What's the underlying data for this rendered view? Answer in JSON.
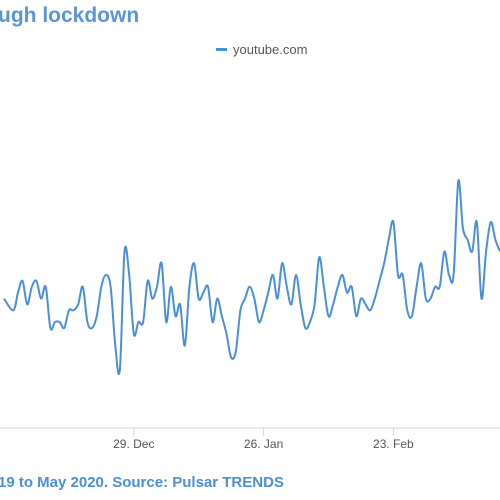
{
  "chart_data": {
    "type": "line",
    "title": "ugh lockdown",
    "source": "19 to May 2020. Source: Pulsar TRENDS",
    "legend_position": "top",
    "grid": false,
    "series": [
      {
        "name": "youtube.com",
        "color": "#4a8fd9",
        "x": [
          0,
          2,
          3,
          4,
          5,
          6,
          7,
          8,
          9,
          10,
          11,
          12,
          13,
          14,
          15,
          16,
          17,
          18,
          19,
          20,
          21,
          22,
          23,
          24,
          25,
          26,
          27,
          28,
          29,
          30,
          31,
          32,
          33,
          34,
          35,
          36,
          37,
          38,
          39,
          40,
          41,
          42,
          43,
          44,
          45,
          46,
          47,
          48,
          49,
          50,
          51,
          52,
          53,
          54,
          55,
          56,
          57,
          58,
          59,
          60,
          61,
          62,
          63,
          64,
          65,
          66,
          67,
          68,
          69,
          70,
          71,
          72,
          73,
          74,
          75,
          76,
          77,
          78,
          79,
          80,
          81,
          82,
          83,
          84,
          85,
          86,
          87,
          88,
          89,
          90,
          91,
          92,
          93,
          94,
          95,
          96,
          97,
          98,
          99,
          100,
          101,
          102,
          103,
          104,
          105,
          106,
          107
        ],
        "values": [
          22,
          20,
          23,
          25,
          21,
          24,
          25,
          22,
          24,
          17,
          18,
          18,
          17,
          20,
          20,
          21,
          24,
          18,
          17,
          19,
          24,
          26,
          24,
          14,
          10,
          30,
          26,
          16,
          18,
          18,
          25,
          22,
          24,
          28,
          18,
          24,
          19,
          21,
          14,
          24,
          28,
          22,
          23,
          24,
          18,
          22,
          19,
          16,
          12,
          13,
          20,
          22,
          24,
          22,
          18,
          20,
          23,
          26,
          22,
          28,
          24,
          21,
          26,
          21,
          17,
          18,
          21,
          29,
          24,
          19,
          21,
          24,
          26,
          23,
          24,
          19,
          22,
          21,
          20,
          22,
          25,
          28,
          32,
          35,
          26,
          26,
          20,
          19,
          24,
          28,
          22,
          22,
          24,
          24,
          30,
          26,
          26,
          42,
          34,
          32,
          30,
          35,
          22,
          30,
          35,
          32,
          30
        ]
      }
    ],
    "x_ticks": [
      {
        "label": "29. Dec",
        "x": 28
      },
      {
        "label": "26. Jan",
        "x": 56
      },
      {
        "label": "23. Feb",
        "x": 84
      }
    ],
    "ylim": [
      0,
      60
    ]
  }
}
